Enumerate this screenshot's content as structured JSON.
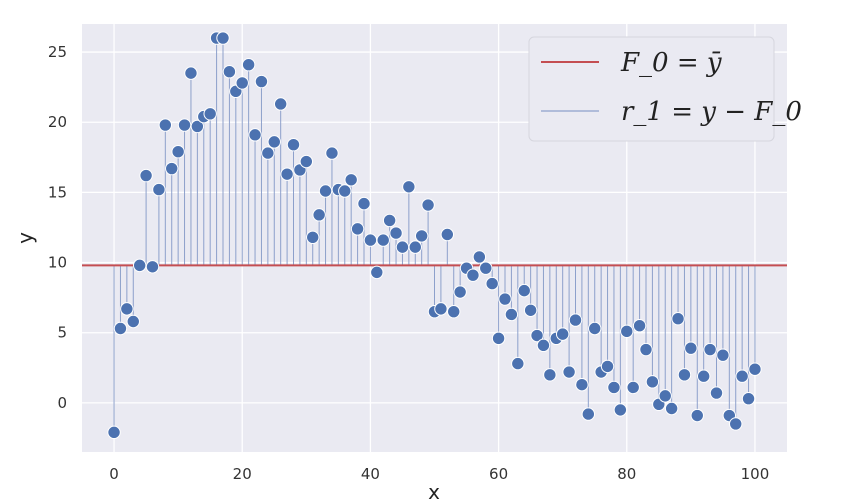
{
  "chart_data": {
    "type": "scatter",
    "xlabel": "x",
    "ylabel": "y",
    "xlim": [
      -5,
      105
    ],
    "ylim": [
      -3.5,
      27
    ],
    "xticks": [
      "0",
      "20",
      "40",
      "60",
      "80",
      "100"
    ],
    "yticks": [
      "0",
      "5",
      "10",
      "15",
      "20",
      "25"
    ],
    "grid": true,
    "legend_position": "top-right",
    "colors": {
      "background": "#eaeaf2",
      "grid": "#ffffff",
      "points": "#4c72b0",
      "mean_line": "#c44e52",
      "residual_lines": "#8da0cb"
    },
    "series": [
      {
        "name": "F_0 = ȳ",
        "kind": "horizontal_line",
        "y": 9.8
      },
      {
        "name": "r_1 = y − F_0",
        "kind": "stems_with_points",
        "baseline": 9.8,
        "x": [
          0,
          1,
          2,
          3,
          4,
          5,
          6,
          7,
          8,
          9,
          10,
          11,
          12,
          13,
          14,
          15,
          16,
          17,
          18,
          19,
          20,
          21,
          22,
          23,
          24,
          25,
          26,
          27,
          28,
          29,
          30,
          31,
          32,
          33,
          34,
          35,
          36,
          37,
          38,
          39,
          40,
          41,
          42,
          43,
          44,
          45,
          46,
          47,
          48,
          49,
          50,
          51,
          52,
          53,
          54,
          55,
          56,
          57,
          58,
          59,
          60,
          61,
          62,
          63,
          64,
          65,
          66,
          67,
          68,
          69,
          70,
          71,
          72,
          73,
          74,
          75,
          76,
          77,
          78,
          79,
          80,
          81,
          82,
          83,
          84,
          85,
          86,
          87,
          88,
          89,
          90,
          91,
          92,
          93,
          94,
          95,
          96,
          97,
          98,
          99,
          100
        ],
        "y": [
          -2.1,
          5.3,
          6.7,
          5.8,
          9.8,
          16.2,
          9.7,
          15.2,
          19.8,
          16.7,
          17.9,
          19.8,
          23.5,
          19.7,
          20.4,
          20.6,
          26.0,
          26.0,
          23.6,
          22.2,
          22.8,
          24.1,
          19.1,
          22.9,
          17.8,
          18.6,
          21.3,
          16.3,
          18.4,
          16.6,
          17.2,
          11.8,
          13.4,
          15.1,
          17.8,
          15.2,
          15.1,
          15.9,
          12.4,
          14.2,
          11.6,
          9.3,
          11.6,
          13.0,
          12.1,
          11.1,
          15.4,
          11.1,
          11.9,
          14.1,
          6.5,
          6.7,
          12.0,
          6.5,
          7.9,
          9.6,
          9.1,
          10.4,
          9.6,
          8.5,
          4.6,
          7.4,
          6.3,
          2.8,
          8.0,
          6.6,
          4.8,
          4.1,
          2.0,
          4.6,
          4.9,
          2.2,
          5.9,
          1.3,
          -0.8,
          5.3,
          2.2,
          2.6,
          1.1,
          -0.5,
          5.1,
          1.1,
          5.5,
          3.8,
          1.5,
          -0.1,
          0.5,
          -0.4,
          6.0,
          2.0,
          3.9,
          -0.9,
          1.9,
          3.8,
          0.7,
          3.4,
          -0.9,
          -1.5,
          1.9,
          0.3,
          2.4
        ]
      }
    ]
  }
}
